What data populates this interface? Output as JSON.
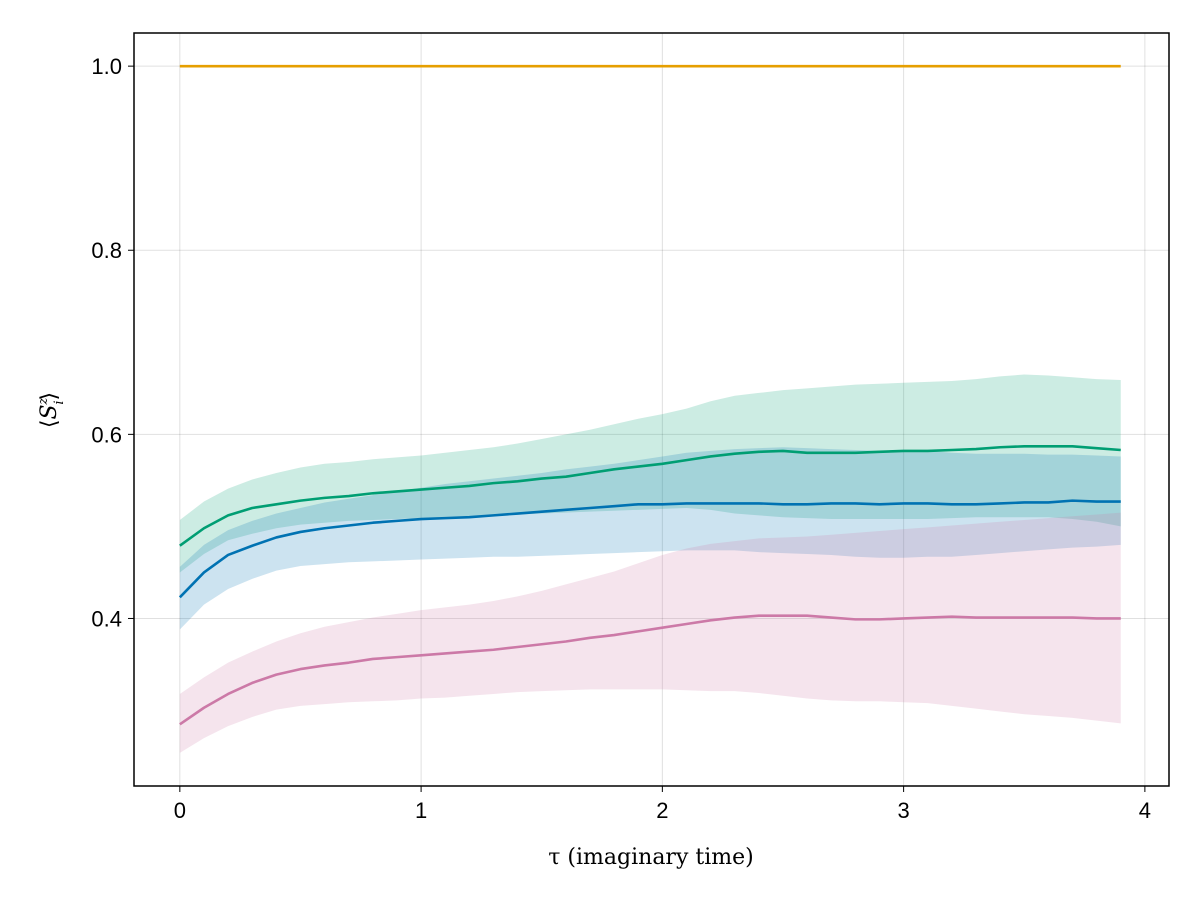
{
  "chart_data": {
    "type": "line",
    "xlabel": "τ (imaginary time)",
    "ylabel_parts": {
      "open": "⟨",
      "main": "S",
      "sup": "z",
      "sub": "i",
      "close": "⟩"
    },
    "xlim": [
      -0.19,
      4.1
    ],
    "ylim": [
      0.218,
      1.036
    ],
    "x_ticks": [
      0,
      1,
      2,
      3,
      4
    ],
    "x_tick_labels": [
      "0",
      "1",
      "2",
      "3",
      "4"
    ],
    "y_ticks": [
      0.4,
      0.6,
      0.8,
      1.0
    ],
    "y_tick_labels": [
      "0.4",
      "0.6",
      "0.8",
      "1.0"
    ],
    "grid": true,
    "x": [
      0.0,
      0.1,
      0.2,
      0.3,
      0.4,
      0.5,
      0.6,
      0.7,
      0.8,
      0.9,
      1.0,
      1.1,
      1.2,
      1.3,
      1.4,
      1.5,
      1.6,
      1.7,
      1.8,
      1.9,
      2.0,
      2.1,
      2.2,
      2.3,
      2.4,
      2.5,
      2.6,
      2.7,
      2.8,
      2.9,
      3.0,
      3.1,
      3.2,
      3.3,
      3.4,
      3.5,
      3.6,
      3.7,
      3.8,
      3.9
    ],
    "series": [
      {
        "color": "#e69f00",
        "values": [
          1.0,
          1.0,
          1.0,
          1.0,
          1.0,
          1.0,
          1.0,
          1.0,
          1.0,
          1.0,
          1.0,
          1.0,
          1.0,
          1.0,
          1.0,
          1.0,
          1.0,
          1.0,
          1.0,
          1.0,
          1.0,
          1.0,
          1.0,
          1.0,
          1.0,
          1.0,
          1.0,
          1.0,
          1.0,
          1.0,
          1.0,
          1.0,
          1.0,
          1.0,
          1.0,
          1.0,
          1.0,
          1.0,
          1.0,
          1.0
        ]
      },
      {
        "color": "#009e73",
        "band_opacity": 0.2,
        "values": [
          0.479,
          0.498,
          0.512,
          0.52,
          0.524,
          0.528,
          0.531,
          0.533,
          0.536,
          0.538,
          0.54,
          0.542,
          0.544,
          0.547,
          0.549,
          0.552,
          0.554,
          0.558,
          0.562,
          0.565,
          0.568,
          0.572,
          0.576,
          0.579,
          0.581,
          0.582,
          0.58,
          0.58,
          0.58,
          0.581,
          0.582,
          0.582,
          0.583,
          0.584,
          0.586,
          0.587,
          0.587,
          0.587,
          0.585,
          0.583
        ],
        "lower": [
          0.45,
          0.47,
          0.485,
          0.492,
          0.498,
          0.502,
          0.504,
          0.506,
          0.507,
          0.508,
          0.509,
          0.51,
          0.511,
          0.512,
          0.513,
          0.514,
          0.515,
          0.516,
          0.517,
          0.518,
          0.519,
          0.52,
          0.518,
          0.514,
          0.512,
          0.51,
          0.509,
          0.508,
          0.508,
          0.508,
          0.508,
          0.508,
          0.509,
          0.51,
          0.51,
          0.51,
          0.51,
          0.508,
          0.505,
          0.5
        ],
        "upper": [
          0.507,
          0.527,
          0.541,
          0.551,
          0.558,
          0.564,
          0.568,
          0.57,
          0.573,
          0.575,
          0.577,
          0.58,
          0.583,
          0.586,
          0.59,
          0.595,
          0.6,
          0.605,
          0.611,
          0.617,
          0.622,
          0.628,
          0.636,
          0.642,
          0.645,
          0.648,
          0.65,
          0.652,
          0.654,
          0.655,
          0.656,
          0.657,
          0.658,
          0.66,
          0.663,
          0.665,
          0.664,
          0.662,
          0.66,
          0.659
        ]
      },
      {
        "color": "#0072b2",
        "band_opacity": 0.2,
        "values": [
          0.423,
          0.45,
          0.469,
          0.479,
          0.488,
          0.494,
          0.498,
          0.501,
          0.504,
          0.506,
          0.508,
          0.509,
          0.51,
          0.512,
          0.514,
          0.516,
          0.518,
          0.52,
          0.522,
          0.524,
          0.524,
          0.525,
          0.525,
          0.525,
          0.525,
          0.524,
          0.524,
          0.525,
          0.525,
          0.524,
          0.525,
          0.525,
          0.524,
          0.524,
          0.525,
          0.526,
          0.526,
          0.528,
          0.527,
          0.527
        ],
        "lower": [
          0.388,
          0.415,
          0.432,
          0.443,
          0.452,
          0.457,
          0.459,
          0.461,
          0.462,
          0.463,
          0.464,
          0.465,
          0.466,
          0.467,
          0.467,
          0.468,
          0.469,
          0.47,
          0.471,
          0.472,
          0.473,
          0.474,
          0.474,
          0.474,
          0.472,
          0.471,
          0.47,
          0.469,
          0.467,
          0.466,
          0.466,
          0.467,
          0.467,
          0.469,
          0.471,
          0.473,
          0.475,
          0.477,
          0.478,
          0.48
        ],
        "upper": [
          0.456,
          0.48,
          0.496,
          0.506,
          0.514,
          0.52,
          0.526,
          0.53,
          0.534,
          0.538,
          0.542,
          0.546,
          0.549,
          0.552,
          0.555,
          0.558,
          0.562,
          0.565,
          0.568,
          0.572,
          0.576,
          0.58,
          0.582,
          0.584,
          0.585,
          0.586,
          0.585,
          0.584,
          0.583,
          0.582,
          0.582,
          0.582,
          0.58,
          0.579,
          0.579,
          0.579,
          0.578,
          0.578,
          0.577,
          0.576
        ]
      },
      {
        "color": "#cc79a7",
        "band_opacity": 0.2,
        "values": [
          0.285,
          0.303,
          0.318,
          0.33,
          0.339,
          0.345,
          0.349,
          0.352,
          0.356,
          0.358,
          0.36,
          0.362,
          0.364,
          0.366,
          0.369,
          0.372,
          0.375,
          0.379,
          0.382,
          0.386,
          0.39,
          0.394,
          0.398,
          0.401,
          0.403,
          0.403,
          0.403,
          0.401,
          0.399,
          0.399,
          0.4,
          0.401,
          0.402,
          0.401,
          0.401,
          0.401,
          0.401,
          0.401,
          0.4,
          0.4
        ],
        "lower": [
          0.254,
          0.27,
          0.283,
          0.293,
          0.301,
          0.305,
          0.307,
          0.309,
          0.31,
          0.311,
          0.313,
          0.314,
          0.316,
          0.318,
          0.32,
          0.321,
          0.322,
          0.323,
          0.323,
          0.323,
          0.323,
          0.322,
          0.321,
          0.321,
          0.319,
          0.316,
          0.313,
          0.311,
          0.31,
          0.31,
          0.309,
          0.308,
          0.305,
          0.302,
          0.299,
          0.296,
          0.294,
          0.292,
          0.289,
          0.286
        ],
        "upper": [
          0.318,
          0.336,
          0.352,
          0.364,
          0.375,
          0.384,
          0.391,
          0.396,
          0.401,
          0.405,
          0.409,
          0.412,
          0.415,
          0.419,
          0.424,
          0.43,
          0.437,
          0.444,
          0.451,
          0.46,
          0.469,
          0.476,
          0.481,
          0.484,
          0.487,
          0.488,
          0.489,
          0.491,
          0.493,
          0.495,
          0.497,
          0.499,
          0.501,
          0.503,
          0.505,
          0.507,
          0.509,
          0.511,
          0.513,
          0.515
        ]
      }
    ]
  }
}
